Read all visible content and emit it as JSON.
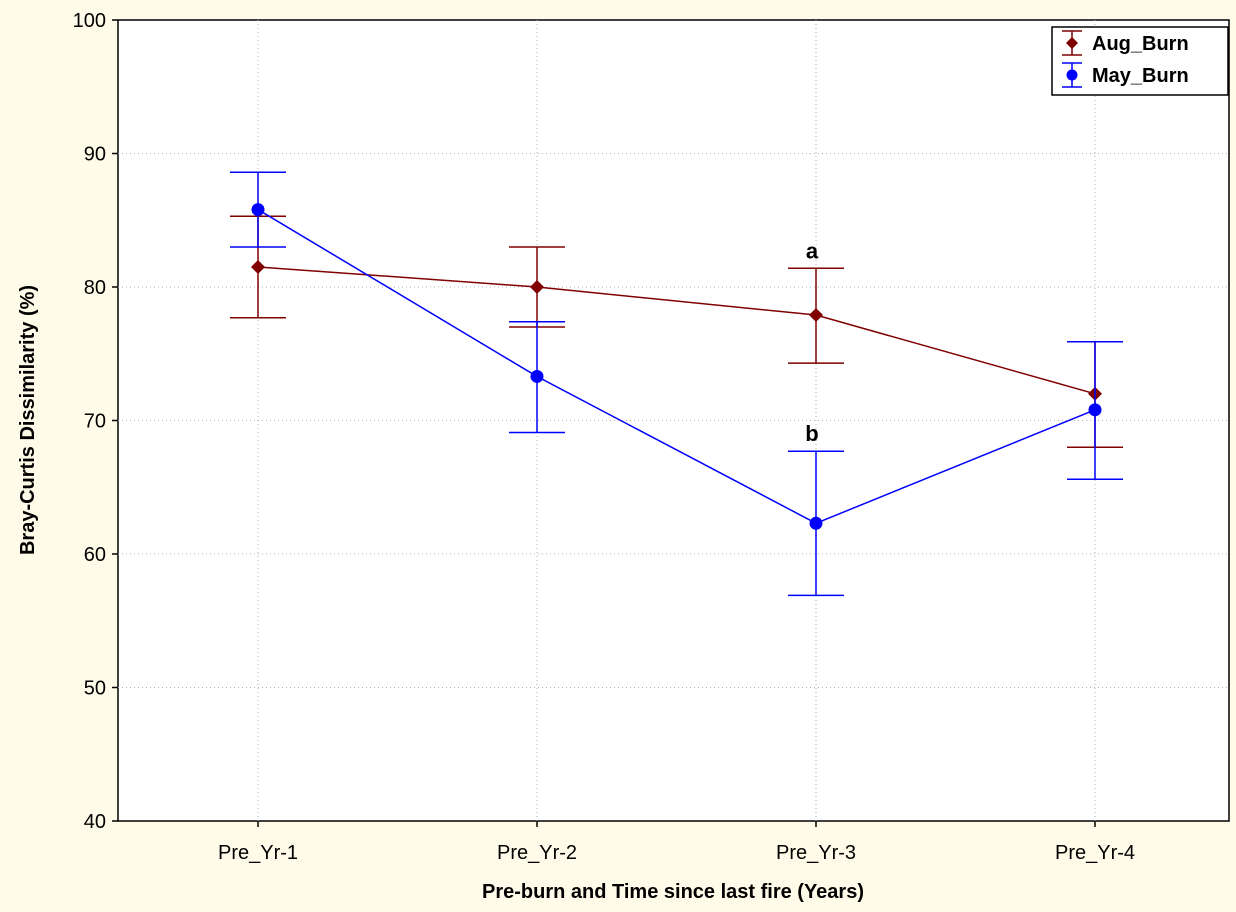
{
  "chart_data": {
    "type": "line",
    "xlabel": "Pre-burn and Time since last fire (Years)",
    "ylabel": "Bray-Curtis Dissimilarity (%)",
    "categories": [
      "Pre_Yr-1",
      "Pre_Yr-2",
      "Pre_Yr-3",
      "Pre_Yr-4"
    ],
    "ylim": [
      40,
      100
    ],
    "yticks": [
      40,
      50,
      60,
      70,
      80,
      90,
      100
    ],
    "grid": true,
    "legend": "top-right",
    "series": [
      {
        "name": "Aug_Burn",
        "color": "#800000",
        "marker": "diamond",
        "values": [
          81.5,
          80.0,
          77.9,
          72.0
        ],
        "lower": [
          77.7,
          77.0,
          74.3,
          68.0
        ],
        "upper": [
          85.3,
          83.0,
          81.4,
          75.9
        ]
      },
      {
        "name": "May_Burn",
        "color": "#0000ff",
        "marker": "circle",
        "values": [
          85.8,
          73.3,
          62.3,
          70.8
        ],
        "lower": [
          83.0,
          69.1,
          56.9,
          65.6
        ],
        "upper": [
          88.6,
          77.4,
          67.7,
          75.9
        ]
      }
    ],
    "annotations": [
      {
        "text": "a",
        "category": "Pre_Yr-3",
        "y": 81.4,
        "series": "Aug_Burn"
      },
      {
        "text": "b",
        "category": "Pre_Yr-3",
        "y": 67.7,
        "series": "May_Burn"
      }
    ]
  }
}
